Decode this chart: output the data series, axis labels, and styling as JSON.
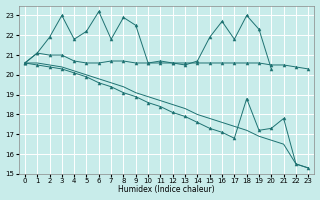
{
  "xlabel": "Humidex (Indice chaleur)",
  "xlim": [
    0,
    23
  ],
  "ylim": [
    15,
    23.5
  ],
  "yticks": [
    15,
    16,
    17,
    18,
    19,
    20,
    21,
    22,
    23
  ],
  "xticks": [
    0,
    1,
    2,
    3,
    4,
    5,
    6,
    7,
    8,
    9,
    10,
    11,
    12,
    13,
    14,
    15,
    16,
    17,
    18,
    19,
    20,
    21,
    22,
    23
  ],
  "bg_color": "#c8ecea",
  "line_color": "#1e7272",
  "grid_color": "#b0d8d4",
  "lines": [
    {
      "x": [
        0,
        1,
        2,
        3,
        4,
        5,
        6,
        7,
        8,
        9,
        10,
        11,
        12,
        13,
        14,
        15,
        16,
        17,
        18,
        19,
        20
      ],
      "y": [
        20.6,
        21.1,
        21.9,
        23.0,
        21.8,
        22.2,
        23.2,
        21.8,
        22.9,
        22.5,
        20.6,
        20.7,
        20.6,
        20.5,
        20.7,
        21.9,
        22.7,
        21.8,
        23.0,
        22.3,
        20.3
      ],
      "marker": true
    },
    {
      "x": [
        0,
        1,
        2,
        3,
        4,
        5,
        6,
        7,
        8,
        9,
        10,
        11,
        12,
        13,
        14,
        15,
        16,
        17,
        18,
        19,
        20,
        21,
        22,
        23
      ],
      "y": [
        20.6,
        21.1,
        21.0,
        21.0,
        20.7,
        20.6,
        20.6,
        20.7,
        20.7,
        20.6,
        20.6,
        20.6,
        20.6,
        20.6,
        20.6,
        20.6,
        20.6,
        20.6,
        20.6,
        20.6,
        20.5,
        20.5,
        20.4,
        20.3
      ],
      "marker": true
    },
    {
      "x": [
        0,
        1,
        2,
        3,
        4,
        5,
        6,
        7,
        8,
        9,
        10,
        11,
        12,
        13,
        14,
        15,
        16,
        17,
        18,
        19,
        20,
        21,
        22,
        23
      ],
      "y": [
        20.6,
        20.5,
        20.4,
        20.3,
        20.1,
        19.9,
        19.6,
        19.4,
        19.1,
        18.9,
        18.6,
        18.4,
        18.1,
        17.9,
        17.6,
        17.3,
        17.1,
        16.8,
        18.8,
        17.2,
        17.3,
        17.8,
        15.5,
        15.3
      ],
      "marker": true
    },
    {
      "x": [
        0,
        1,
        2,
        3,
        4,
        5,
        6,
        7,
        8,
        9,
        10,
        11,
        12,
        13,
        14,
        15,
        16,
        17,
        18,
        19,
        20,
        21,
        22,
        23
      ],
      "y": [
        20.6,
        20.6,
        20.5,
        20.4,
        20.2,
        20.0,
        19.8,
        19.6,
        19.4,
        19.1,
        18.9,
        18.7,
        18.5,
        18.3,
        18.0,
        17.8,
        17.6,
        17.4,
        17.2,
        16.9,
        16.7,
        16.5,
        15.5,
        15.3
      ],
      "marker": false
    }
  ]
}
